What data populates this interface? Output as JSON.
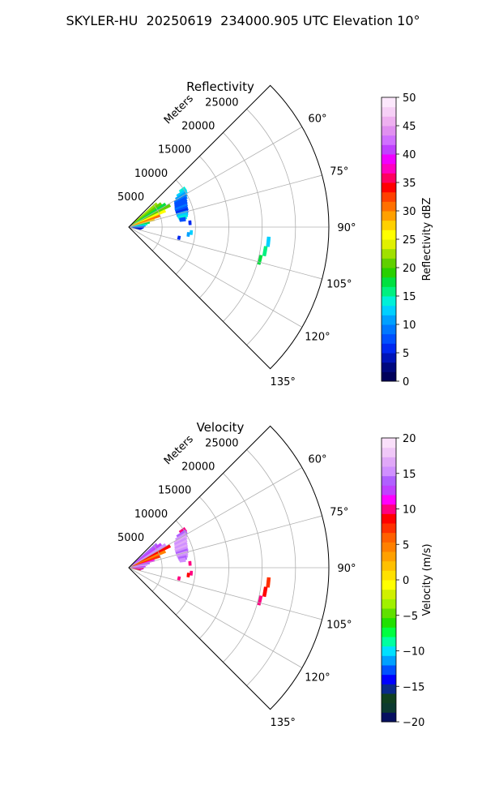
{
  "suptitle": "SKYLER-HU  20250619  234000.905 UTC Elevation 10°",
  "chart_data": [
    {
      "type": "polar-sector",
      "title": "Reflectivity",
      "range_unit_label": "Meters",
      "r_ticks": [
        "5000",
        "10000",
        "15000",
        "20000",
        "25000"
      ],
      "r_max": 30000,
      "azimuth_range": [
        45,
        135
      ],
      "azimuth_ticks": [
        "60°",
        "75°",
        "90°",
        "105°",
        "120°",
        "135°"
      ],
      "grid": true,
      "colorbar": {
        "label": "Reflectivity dBZ",
        "range": [
          0,
          50
        ],
        "ticks": [
          "0",
          "5",
          "10",
          "15",
          "20",
          "25",
          "30",
          "35",
          "40",
          "45",
          "50"
        ]
      },
      "echoes": [
        {
          "az": 50,
          "r0": 0,
          "r1": 5500,
          "v": 22
        },
        {
          "az": 54,
          "r0": 0,
          "r1": 6000,
          "v": 20
        },
        {
          "az": 58,
          "r0": 0,
          "r1": 6500,
          "v": 18
        },
        {
          "az": 62,
          "r0": 0,
          "r1": 7000,
          "v": 20
        },
        {
          "az": 66,
          "r0": 0,
          "r1": 6000,
          "v": 25
        },
        {
          "az": 70,
          "r0": 0,
          "r1": 5000,
          "v": 30
        },
        {
          "az": 74,
          "r0": 0,
          "r1": 4000,
          "v": 28
        },
        {
          "az": 78,
          "r0": 0,
          "r1": 3200,
          "v": 18
        },
        {
          "az": 82,
          "r0": 0,
          "r1": 2800,
          "v": 14
        },
        {
          "az": 86,
          "r0": 0,
          "r1": 2500,
          "v": 10
        },
        {
          "az": 90,
          "r0": 0,
          "r1": 2300,
          "v": 6
        },
        {
          "az": 94,
          "r0": 0,
          "r1": 2200,
          "v": 5
        },
        {
          "az": 98,
          "r0": 0,
          "r1": 2000,
          "v": 4
        },
        {
          "az": 102,
          "r0": 0,
          "r1": 1800,
          "v": 5
        },
        {
          "az": 56,
          "r0": 9300,
          "r1": 10300,
          "v": 14
        },
        {
          "az": 58,
          "r0": 8600,
          "r1": 10200,
          "v": 12
        },
        {
          "az": 60,
          "r0": 8200,
          "r1": 10000,
          "v": 10
        },
        {
          "az": 62,
          "r0": 7800,
          "r1": 9800,
          "v": 9
        },
        {
          "az": 64,
          "r0": 7700,
          "r1": 9600,
          "v": 8
        },
        {
          "az": 66,
          "r0": 7600,
          "r1": 9500,
          "v": 7
        },
        {
          "az": 68,
          "r0": 7500,
          "r1": 9400,
          "v": 8
        },
        {
          "az": 70,
          "r0": 7400,
          "r1": 9300,
          "v": 9
        },
        {
          "az": 72,
          "r0": 7400,
          "r1": 9300,
          "v": 7
        },
        {
          "az": 74,
          "r0": 7400,
          "r1": 9200,
          "v": 6
        },
        {
          "az": 76,
          "r0": 7400,
          "r1": 9100,
          "v": 11
        },
        {
          "az": 78,
          "r0": 7500,
          "r1": 9000,
          "v": 12
        },
        {
          "az": 80,
          "r0": 7600,
          "r1": 8800,
          "v": 14
        },
        {
          "az": 82,
          "r0": 7700,
          "r1": 8600,
          "v": 8
        },
        {
          "az": 86,
          "r0": 9000,
          "r1": 9400,
          "v": 5
        },
        {
          "az": 95,
          "r0": 9200,
          "r1": 9600,
          "v": 12
        },
        {
          "az": 97,
          "r0": 8800,
          "r1": 9200,
          "v": 10
        },
        {
          "az": 102,
          "r0": 7500,
          "r1": 7900,
          "v": 6
        },
        {
          "az": 96,
          "r0": 20800,
          "r1": 21300,
          "v": 12
        },
        {
          "az": 100,
          "r0": 20500,
          "r1": 21000,
          "v": 15
        },
        {
          "az": 104,
          "r0": 20000,
          "r1": 20500,
          "v": 17
        }
      ]
    },
    {
      "type": "polar-sector",
      "title": "Velocity",
      "range_unit_label": "Meters",
      "r_ticks": [
        "5000",
        "10000",
        "15000",
        "20000",
        "25000"
      ],
      "r_max": 30000,
      "azimuth_range": [
        45,
        135
      ],
      "azimuth_ticks": [
        "60°",
        "75°",
        "90°",
        "105°",
        "120°",
        "135°"
      ],
      "grid": true,
      "colorbar": {
        "label": "Velocity (m/s)",
        "range": [
          -20,
          20
        ],
        "ticks": [
          "−20",
          "−15",
          "−10",
          "−5",
          "0",
          "5",
          "10",
          "15",
          "20"
        ]
      },
      "echoes": [
        {
          "az": 50,
          "r0": 0,
          "r1": 5500,
          "v": 14
        },
        {
          "az": 54,
          "r0": 0,
          "r1": 6000,
          "v": 13
        },
        {
          "az": 58,
          "r0": 0,
          "r1": 6500,
          "v": 15
        },
        {
          "az": 62,
          "r0": 0,
          "r1": 7000,
          "v": 8
        },
        {
          "az": 66,
          "r0": 0,
          "r1": 6000,
          "v": 5
        },
        {
          "az": 70,
          "r0": 0,
          "r1": 5000,
          "v": 7
        },
        {
          "az": 74,
          "r0": 0,
          "r1": 4000,
          "v": 11
        },
        {
          "az": 78,
          "r0": 0,
          "r1": 3200,
          "v": 14
        },
        {
          "az": 82,
          "r0": 0,
          "r1": 2800,
          "v": 16
        },
        {
          "az": 86,
          "r0": 0,
          "r1": 2500,
          "v": 12
        },
        {
          "az": 90,
          "r0": 0,
          "r1": 2300,
          "v": 13
        },
        {
          "az": 94,
          "r0": 0,
          "r1": 2200,
          "v": 10
        },
        {
          "az": 98,
          "r0": 0,
          "r1": 2000,
          "v": 12
        },
        {
          "az": 102,
          "r0": 0,
          "r1": 1800,
          "v": 9
        },
        {
          "az": 56,
          "r0": 9300,
          "r1": 10300,
          "v": 10
        },
        {
          "az": 58,
          "r0": 8600,
          "r1": 10200,
          "v": 14
        },
        {
          "az": 60,
          "r0": 8200,
          "r1": 10000,
          "v": 15
        },
        {
          "az": 62,
          "r0": 7800,
          "r1": 9800,
          "v": 16
        },
        {
          "az": 64,
          "r0": 7700,
          "r1": 9600,
          "v": 15
        },
        {
          "az": 66,
          "r0": 7600,
          "r1": 9500,
          "v": 16
        },
        {
          "az": 68,
          "r0": 7500,
          "r1": 9400,
          "v": 15
        },
        {
          "az": 70,
          "r0": 7400,
          "r1": 9300,
          "v": 16
        },
        {
          "az": 72,
          "r0": 7400,
          "r1": 9300,
          "v": 15
        },
        {
          "az": 74,
          "r0": 7400,
          "r1": 9200,
          "v": 14
        },
        {
          "az": 76,
          "r0": 7400,
          "r1": 9100,
          "v": 16
        },
        {
          "az": 78,
          "r0": 7500,
          "r1": 9000,
          "v": 15
        },
        {
          "az": 80,
          "r0": 7600,
          "r1": 8800,
          "v": 14
        },
        {
          "az": 82,
          "r0": 7700,
          "r1": 8600,
          "v": 15
        },
        {
          "az": 86,
          "r0": 9000,
          "r1": 9400,
          "v": 10
        },
        {
          "az": 95,
          "r0": 9200,
          "r1": 9600,
          "v": 10
        },
        {
          "az": 97,
          "r0": 8800,
          "r1": 9200,
          "v": 9
        },
        {
          "az": 102,
          "r0": 7500,
          "r1": 7900,
          "v": 10
        },
        {
          "az": 96,
          "r0": 20800,
          "r1": 21300,
          "v": 7
        },
        {
          "az": 100,
          "r0": 20500,
          "r1": 21000,
          "v": 9
        },
        {
          "az": 104,
          "r0": 20000,
          "r1": 20500,
          "v": 10
        }
      ]
    }
  ]
}
